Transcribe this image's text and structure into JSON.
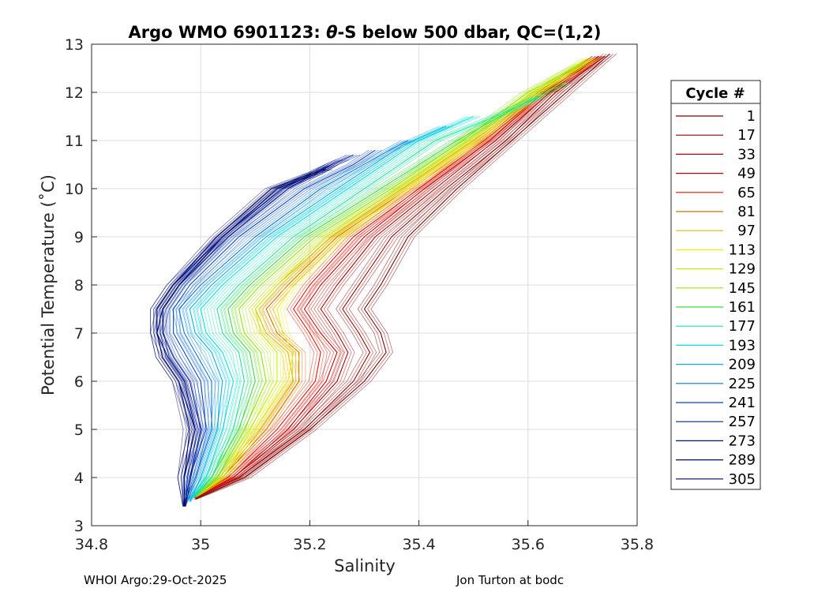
{
  "chart_data": {
    "type": "line",
    "title_main": "Argo WMO 6901123: ",
    "title_theta": "θ",
    "title_rest": "-S below 500 dbar,  QC=(1,2)",
    "xlabel": "Salinity",
    "ylabel": "Potential Temperature (˚C)",
    "xlim": [
      34.8,
      35.8
    ],
    "ylim": [
      3,
      13
    ],
    "xticks": [
      34.8,
      35,
      35.2,
      35.4,
      35.6,
      35.8
    ],
    "xtick_labels": [
      "34.8",
      "35",
      "35.2",
      "35.4",
      "35.6",
      "35.8"
    ],
    "yticks": [
      3,
      4,
      5,
      6,
      7,
      8,
      9,
      10,
      11,
      12,
      13
    ],
    "ytick_labels": [
      "3",
      "4",
      "5",
      "6",
      "7",
      "8",
      "9",
      "10",
      "11",
      "12",
      "13"
    ],
    "grid": true,
    "legend_title": "Cycle #",
    "legend_position": "right-outside",
    "series": [
      {
        "name": "1",
        "color": "#7f0000",
        "x": [
          34.99,
          35.08,
          35.2,
          35.3,
          35.34,
          35.33,
          35.3,
          35.33,
          35.38,
          35.47,
          35.57,
          35.67,
          35.75
        ],
        "y": [
          3.55,
          4.0,
          5.0,
          6.0,
          6.6,
          7.0,
          7.5,
          8.0,
          9.0,
          10.0,
          11.0,
          12.0,
          12.8
        ]
      },
      {
        "name": "17",
        "color": "#960000",
        "x": [
          34.99,
          35.07,
          35.19,
          35.28,
          35.31,
          35.29,
          35.26,
          35.29,
          35.35,
          35.45,
          35.56,
          35.65,
          35.74
        ],
        "y": [
          3.58,
          4.0,
          5.0,
          6.0,
          6.6,
          7.0,
          7.5,
          8.0,
          9.0,
          10.0,
          11.0,
          12.0,
          12.75
        ]
      },
      {
        "name": "33",
        "color": "#b00000",
        "x": [
          34.99,
          35.06,
          35.17,
          35.25,
          35.27,
          35.25,
          35.22,
          35.25,
          35.32,
          35.43,
          35.54,
          35.64,
          35.73
        ],
        "y": [
          3.6,
          4.0,
          5.0,
          6.0,
          6.6,
          7.0,
          7.5,
          8.0,
          9.0,
          10.0,
          11.0,
          12.0,
          12.75
        ]
      },
      {
        "name": "49",
        "color": "#cc0000",
        "x": [
          34.99,
          35.06,
          35.16,
          35.23,
          35.25,
          35.22,
          35.19,
          35.22,
          35.3,
          35.41,
          35.53,
          35.63,
          35.73
        ],
        "y": [
          3.6,
          4.0,
          5.0,
          6.0,
          6.6,
          7.0,
          7.5,
          8.0,
          9.0,
          10.0,
          11.0,
          12.0,
          12.75
        ]
      },
      {
        "name": "65",
        "color": "#e81400",
        "x": [
          34.99,
          35.05,
          35.14,
          35.21,
          35.22,
          35.2,
          35.17,
          35.2,
          35.28,
          35.4,
          35.52,
          35.63,
          35.72
        ],
        "y": [
          3.6,
          4.0,
          5.0,
          6.0,
          6.6,
          7.0,
          7.5,
          8.0,
          9.0,
          10.0,
          11.0,
          12.0,
          12.7
        ]
      },
      {
        "name": "81",
        "color": "#d96a00",
        "x": [
          34.99,
          35.04,
          35.12,
          35.18,
          35.18,
          35.14,
          35.12,
          35.16,
          35.25,
          35.38,
          35.51,
          35.62,
          35.72
        ],
        "y": [
          3.6,
          4.0,
          5.0,
          6.0,
          6.6,
          7.0,
          7.5,
          8.0,
          9.0,
          10.0,
          11.0,
          12.0,
          12.7
        ]
      },
      {
        "name": "97",
        "color": "#e6b400",
        "x": [
          34.99,
          35.04,
          35.11,
          35.17,
          35.16,
          35.12,
          35.1,
          35.14,
          35.24,
          35.37,
          35.5,
          35.62,
          35.72
        ],
        "y": [
          3.6,
          4.0,
          5.0,
          6.0,
          6.6,
          7.0,
          7.5,
          8.0,
          9.0,
          10.0,
          11.0,
          12.0,
          12.7
        ]
      },
      {
        "name": "113",
        "color": "#f0f000",
        "x": [
          34.99,
          35.04,
          35.1,
          35.16,
          35.17,
          35.15,
          35.14,
          35.17,
          35.26,
          35.38,
          35.51,
          35.62,
          35.72
        ],
        "y": [
          3.6,
          4.0,
          5.0,
          6.0,
          6.6,
          7.0,
          7.5,
          8.0,
          9.0,
          10.0,
          11.0,
          12.0,
          12.7
        ]
      },
      {
        "name": "129",
        "color": "#c8f000",
        "x": [
          34.99,
          35.03,
          35.09,
          35.14,
          35.14,
          35.11,
          35.1,
          35.14,
          35.23,
          35.36,
          35.49,
          35.61,
          35.71
        ],
        "y": [
          3.6,
          4.0,
          5.0,
          6.0,
          6.6,
          7.0,
          7.5,
          8.0,
          9.0,
          10.0,
          11.0,
          12.0,
          12.7
        ]
      },
      {
        "name": "145",
        "color": "#96e600",
        "x": [
          34.99,
          35.03,
          35.08,
          35.12,
          35.11,
          35.08,
          35.07,
          35.11,
          35.21,
          35.35,
          35.48,
          35.6,
          35.7
        ],
        "y": [
          3.6,
          4.0,
          5.0,
          6.0,
          6.6,
          7.0,
          7.5,
          8.0,
          9.0,
          10.0,
          11.0,
          12.0,
          12.6
        ]
      },
      {
        "name": "161",
        "color": "#3cdc3c",
        "x": [
          34.99,
          35.02,
          35.07,
          35.1,
          35.09,
          35.06,
          35.05,
          35.09,
          35.19,
          35.33,
          35.47,
          35.58,
          35.67
        ],
        "y": [
          3.6,
          4.0,
          5.0,
          6.0,
          6.6,
          7.0,
          7.5,
          8.0,
          9.0,
          10.0,
          11.0,
          11.7,
          12.2
        ]
      },
      {
        "name": "177",
        "color": "#1ee6a0",
        "x": [
          34.98,
          35.02,
          35.06,
          35.08,
          35.07,
          35.04,
          35.03,
          35.07,
          35.17,
          35.3,
          35.43,
          35.54,
          35.62
        ],
        "y": [
          3.55,
          4.0,
          5.0,
          6.0,
          6.6,
          7.0,
          7.5,
          8.0,
          9.0,
          10.0,
          11.0,
          11.5,
          11.9
        ]
      },
      {
        "name": "193",
        "color": "#00e6dc",
        "x": [
          34.98,
          35.01,
          35.04,
          35.06,
          35.04,
          35.01,
          35.0,
          35.04,
          35.14,
          35.27,
          35.4,
          35.5
        ],
        "y": [
          3.55,
          4.0,
          5.0,
          6.0,
          6.6,
          7.0,
          7.5,
          8.0,
          9.0,
          10.0,
          11.0,
          11.5
        ]
      },
      {
        "name": "209",
        "color": "#00b4e6",
        "x": [
          34.98,
          35.0,
          35.03,
          35.04,
          35.02,
          34.99,
          34.98,
          35.02,
          35.12,
          35.25,
          35.37,
          35.45
        ],
        "y": [
          3.5,
          4.0,
          5.0,
          6.0,
          6.6,
          7.0,
          7.5,
          8.0,
          9.0,
          10.0,
          10.9,
          11.3
        ]
      },
      {
        "name": "225",
        "color": "#0078dc",
        "x": [
          34.97,
          34.99,
          35.02,
          35.02,
          34.99,
          34.97,
          34.96,
          35.0,
          35.1,
          35.22,
          35.33,
          35.38
        ],
        "y": [
          3.45,
          4.0,
          5.0,
          6.0,
          6.6,
          7.0,
          7.5,
          8.0,
          9.0,
          10.0,
          10.7,
          11.0
        ]
      },
      {
        "name": "241",
        "color": "#0046c8",
        "x": [
          34.97,
          34.98,
          35.01,
          35.0,
          34.97,
          34.95,
          34.95,
          34.98,
          35.07,
          35.19,
          35.28,
          35.32
        ],
        "y": [
          3.45,
          4.0,
          5.0,
          6.0,
          6.6,
          7.0,
          7.5,
          8.0,
          9.0,
          10.0,
          10.5,
          10.8
        ]
      },
      {
        "name": "257",
        "color": "#0028aa",
        "x": [
          34.97,
          34.98,
          35.0,
          34.98,
          34.95,
          34.93,
          34.93,
          34.96,
          35.05,
          35.16,
          35.24,
          35.28
        ],
        "y": [
          3.4,
          4.0,
          5.0,
          6.0,
          6.5,
          7.0,
          7.5,
          8.0,
          9.0,
          10.0,
          10.5,
          10.7
        ]
      },
      {
        "name": "273",
        "color": "#000f8c",
        "x": [
          34.97,
          34.97,
          34.99,
          34.97,
          34.94,
          34.92,
          34.92,
          34.95,
          35.04,
          35.15,
          35.22,
          35.26
        ],
        "y": [
          3.4,
          4.0,
          5.0,
          6.0,
          6.5,
          7.0,
          7.5,
          8.0,
          9.0,
          10.0,
          10.4,
          10.6
        ]
      },
      {
        "name": "289",
        "color": "#000a70",
        "x": [
          34.97,
          34.97,
          34.99,
          34.96,
          34.93,
          34.92,
          34.93,
          34.96,
          35.04,
          35.14,
          35.21,
          35.24
        ],
        "y": [
          3.4,
          4.0,
          5.0,
          6.0,
          6.5,
          7.0,
          7.5,
          8.0,
          9.0,
          10.0,
          10.3,
          10.5
        ]
      },
      {
        "name": "305",
        "color": "#00086a",
        "x": [
          34.97,
          34.97,
          34.98,
          34.96,
          34.93,
          34.92,
          34.92,
          34.95,
          35.03,
          35.13,
          35.2,
          35.23
        ],
        "y": [
          3.4,
          4.0,
          5.0,
          6.0,
          6.5,
          7.0,
          7.5,
          8.0,
          9.0,
          10.0,
          10.3,
          10.4
        ]
      }
    ]
  },
  "footer": {
    "left": "WHOI Argo:29-Oct-2025",
    "right": "Jon Turton at bodc"
  }
}
